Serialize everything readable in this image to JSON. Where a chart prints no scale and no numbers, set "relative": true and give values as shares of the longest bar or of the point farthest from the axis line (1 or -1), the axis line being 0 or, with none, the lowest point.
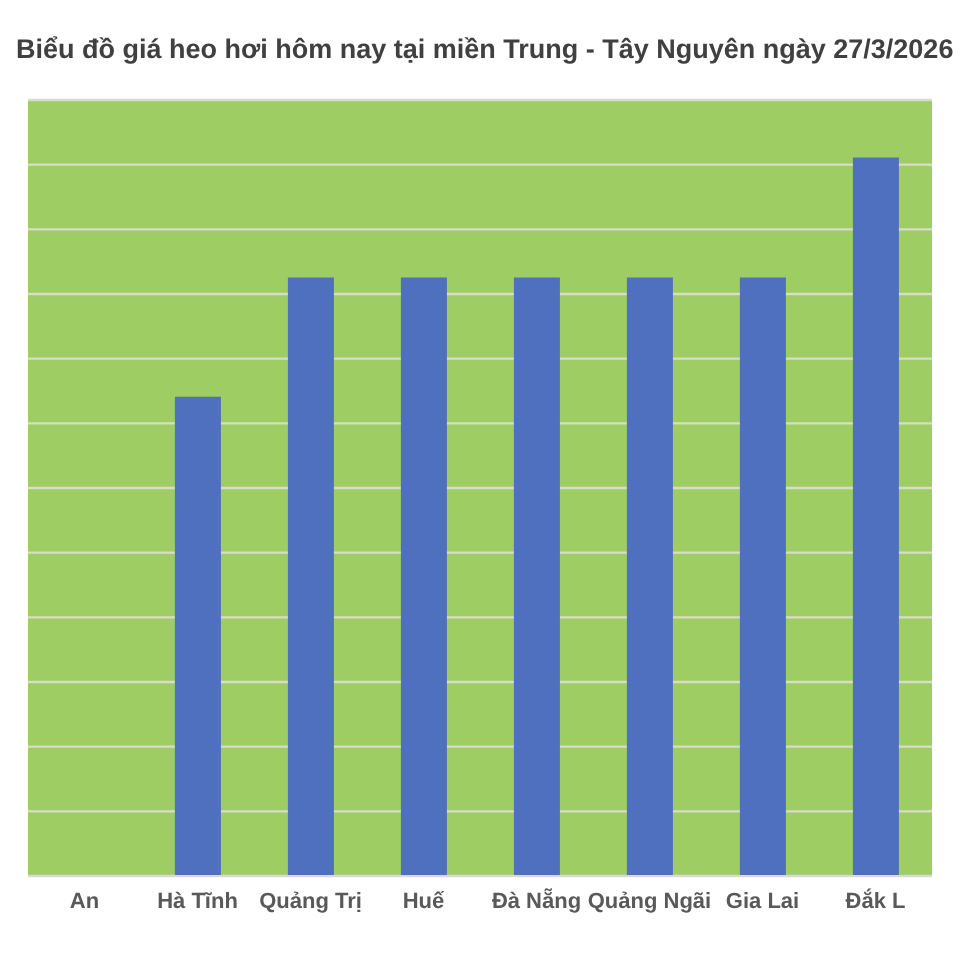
{
  "chart_data": {
    "type": "bar",
    "title": "Biểu đồ giá heo hơi hôm nay tại miền Trung - Tây Nguyên ngày 27/3/2026",
    "categories": [
      "An",
      "Hà Tĩnh",
      "Quảng Trị",
      "Huế",
      "Đà Nẵng",
      "Quảng Ngãi",
      "Gia Lai",
      "Đắk L"
    ],
    "values": [
      null,
      0.667,
      0.833,
      0.833,
      0.833,
      0.833,
      0.833,
      1
    ],
    "color": "#4e70be",
    "relative": true,
    "grid": "y"
  }
}
